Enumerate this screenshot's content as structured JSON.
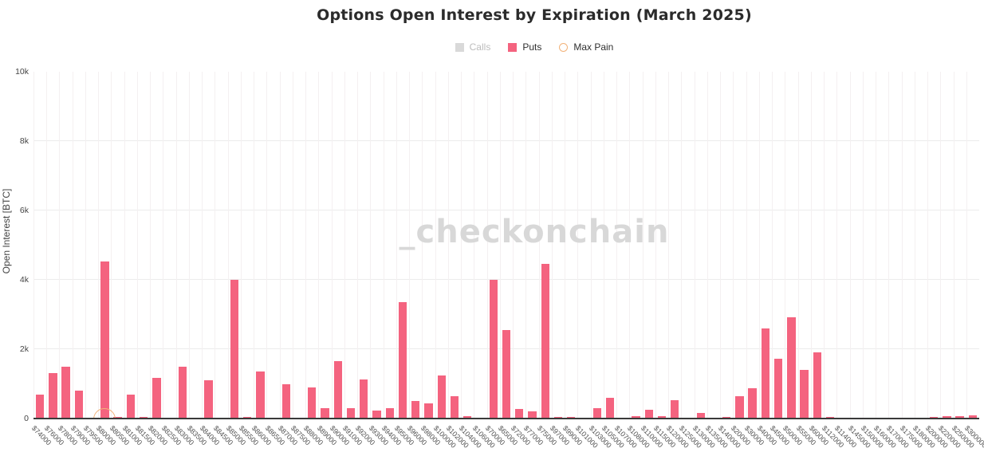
{
  "title": "Options Open Interest by Expiration (March 2025)",
  "watermark": "_checkonchain",
  "legend": {
    "items": [
      {
        "label": "Calls",
        "swatch": "square",
        "color": "#d9d9d9",
        "text_color": "#bcbcbc",
        "disabled": true
      },
      {
        "label": "Puts",
        "swatch": "square",
        "color": "#f4637f",
        "text_color": "#2f2f2f",
        "disabled": false
      },
      {
        "label": "Max Pain",
        "swatch": "open-circle",
        "color": "#f2b279",
        "text_color": "#2f2f2f",
        "disabled": false
      }
    ]
  },
  "chart_data": {
    "type": "bar",
    "title": "Options Open Interest by Expiration (March 2025)",
    "xlabel": "",
    "ylabel": "Open Interest [BTC]",
    "ylim": [
      0,
      10000
    ],
    "ytick_values": [
      0,
      2000,
      4000,
      6000,
      8000,
      10000
    ],
    "ytick_labels": [
      "0",
      "2k",
      "4k",
      "6k",
      "8k",
      "10k"
    ],
    "grid": true,
    "legend_position": "top-center",
    "categories": [
      "$74000",
      "$76000",
      "$78000",
      "$79000",
      "$79500",
      "$80000",
      "$80500",
      "$81000",
      "$81500",
      "$82000",
      "$82500",
      "$83000",
      "$83500",
      "$84000",
      "$84500",
      "$85000",
      "$85500",
      "$86000",
      "$86500",
      "$87000",
      "$87500",
      "$88000",
      "$89000",
      "$90000",
      "$91000",
      "$92000",
      "$93000",
      "$94000",
      "$95000",
      "$96000",
      "$98000",
      "$100000",
      "$102000",
      "$104000",
      "$106000",
      "$70000",
      "$65000",
      "$72000",
      "$77000",
      "$75000",
      "$97000",
      "$99000",
      "$101000",
      "$103000",
      "$105000",
      "$107000",
      "$108000",
      "$110000",
      "$115000",
      "$120000",
      "$125000",
      "$130000",
      "$135000",
      "$140000",
      "$20000",
      "$30000",
      "$40000",
      "$45000",
      "$50000",
      "$55000",
      "$60000",
      "$112000",
      "$114000",
      "$145000",
      "$150000",
      "$160000",
      "$170000",
      "$175000",
      "$180000",
      "$200000",
      "$220000",
      "$250000",
      "$300000"
    ],
    "series": [
      {
        "name": "Calls",
        "color": "#d9d9d9",
        "visible": false,
        "values": []
      },
      {
        "name": "Puts",
        "color": "#f4637f",
        "visible": true,
        "values": [
          700,
          1300,
          1500,
          800,
          30,
          4520,
          50,
          680,
          50,
          1180,
          20,
          1500,
          20,
          1100,
          30,
          4000,
          40,
          1350,
          30,
          1000,
          20,
          900,
          300,
          1650,
          300,
          1120,
          220,
          300,
          3350,
          500,
          440,
          1250,
          640,
          70,
          30,
          4000,
          2550,
          270,
          210,
          4450,
          40,
          50,
          10,
          300,
          590,
          10,
          70,
          245,
          70,
          535,
          10,
          160,
          30,
          50,
          640,
          870,
          2600,
          1730,
          2930,
          1400,
          1900,
          40,
          10,
          5,
          5,
          5,
          5,
          30,
          20,
          40,
          60,
          60,
          90
        ]
      }
    ],
    "max_pain": {
      "label": "Max Pain",
      "category": "$80000",
      "value": 0,
      "color": "#f2b279"
    }
  }
}
